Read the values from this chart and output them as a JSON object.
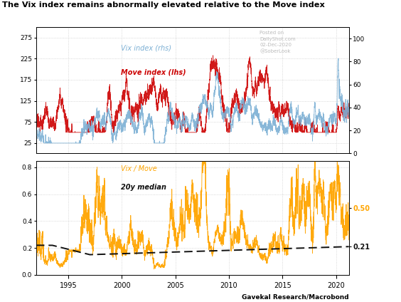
{
  "title": "The Vix index remains abnormally elevated relative to the Move index",
  "watermark": "Posted on\nDailyShot.com\n02-Dec-2020\n@SoberLook",
  "source_label": "Gavekal Research/Macrobond",
  "top_panel": {
    "ylim_left": [
      0,
      300
    ],
    "ylim_right": [
      0,
      110
    ],
    "yticks_left": [
      25,
      75,
      125,
      175,
      225,
      275
    ],
    "yticks_right": [
      0,
      20,
      40,
      60,
      80,
      100
    ],
    "move_color": "#CC0000",
    "vix_color": "#7BAFD4",
    "move_label": "Move index (lhs)",
    "vix_label": "Vix index (rhs)"
  },
  "bottom_panel": {
    "ylim": [
      0.0,
      0.85
    ],
    "yticks": [
      0.0,
      0.2,
      0.4,
      0.6,
      0.8
    ],
    "ratio_color": "#FFA500",
    "median_color": "#111111",
    "ratio_label": "Vix / Move",
    "median_label": "20y median",
    "rhs_ticks": [
      0.21,
      0.5
    ],
    "rhs_labels": [
      "0.21",
      "0.50"
    ],
    "rhs_colors": [
      "#111111",
      "#FFA500"
    ]
  },
  "xstart": 1992.0,
  "xend": 2021.2,
  "xticks": [
    1995,
    2000,
    2005,
    2010,
    2015,
    2020
  ],
  "background_color": "#FFFFFF",
  "grid_color": "#CCCCCC"
}
